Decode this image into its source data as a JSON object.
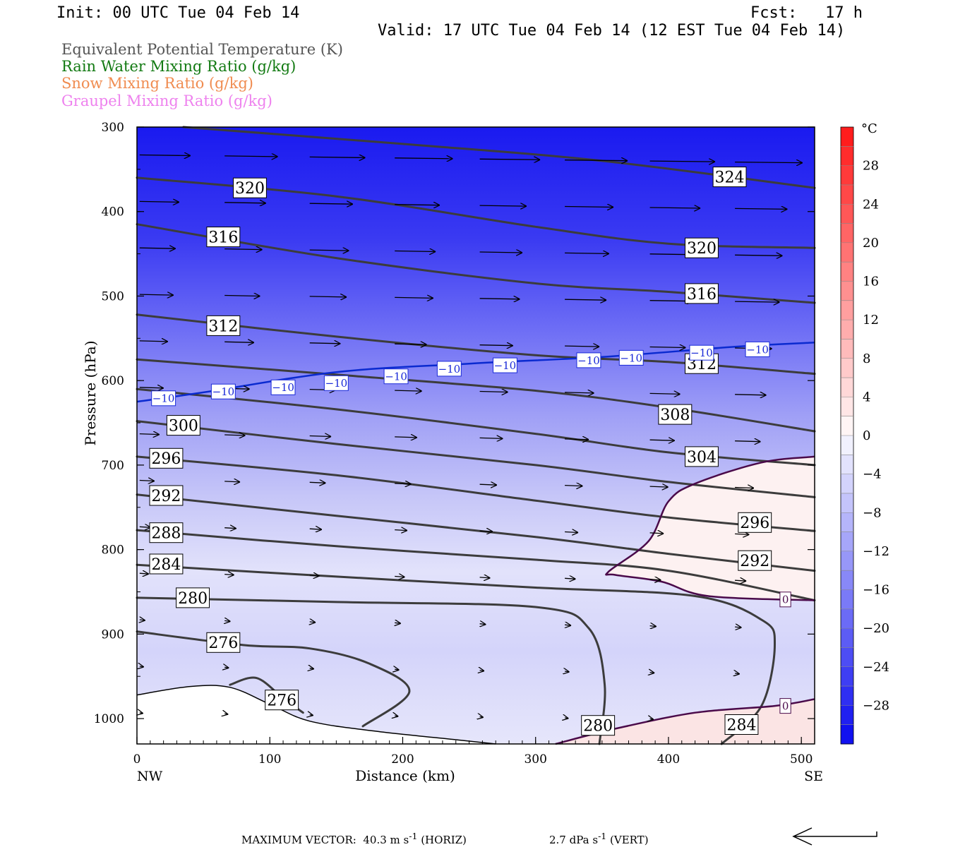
{
  "header": {
    "init": "Init: 00 UTC Tue 04 Feb 14",
    "fcst": "Fcst:   17 h",
    "valid": "Valid: 17 UTC Tue 04 Feb 14 (12 EST Tue 04 Feb 14)"
  },
  "legend": [
    {
      "text": "Equivalent Potential Temperature (K)",
      "color": "#555555"
    },
    {
      "text": "Rain Water Mixing Ratio (g/kg)",
      "color": "#127a12"
    },
    {
      "text": "Snow Mixing Ratio (g/kg)",
      "color": "#f08c50"
    },
    {
      "text": "Graupel Mixing Ratio (g/kg)",
      "color": "#ee82ee"
    }
  ],
  "footer": {
    "max_vector": "MAXIMUM VECTOR:  40.3 m s",
    "horiz": " (HORIZ)",
    "vert_val": "2.7 dPa s",
    "vert": " (VERT)",
    "exp": "-1"
  },
  "chart_data": {
    "type": "cross-section",
    "xlabel": "Distance (km)",
    "ylabel": "Pressure (hPa)",
    "xlim": [
      0,
      510
    ],
    "ylim": [
      300,
      1030
    ],
    "x_ticks": [
      0,
      100,
      200,
      300,
      400,
      500
    ],
    "y_ticks": [
      300,
      400,
      500,
      600,
      700,
      800,
      900,
      1000
    ],
    "x_end_labels": {
      "left": "NW",
      "right": "SE"
    },
    "colorbar": {
      "unit": "°C",
      "ticks": [
        28,
        24,
        20,
        16,
        12,
        8,
        4,
        0,
        -4,
        -8,
        -12,
        -16,
        -20,
        -24,
        -28
      ],
      "range": [
        -32,
        32
      ]
    },
    "theta_e_contours": [
      {
        "value": 324,
        "pts": [
          [
            35,
            300
          ],
          [
            200,
            320
          ],
          [
            350,
            340
          ],
          [
            510,
            372
          ]
        ],
        "labels": [
          {
            "x": 446,
            "p": 359,
            "text": "324"
          }
        ]
      },
      {
        "value": 320,
        "pts": [
          [
            0,
            360
          ],
          [
            150,
            382
          ],
          [
            300,
            418
          ],
          [
            400,
            438
          ],
          [
            510,
            443
          ]
        ],
        "labels": [
          {
            "x": 85,
            "p": 372,
            "text": "320"
          },
          {
            "x": 425,
            "p": 443,
            "text": "320"
          }
        ]
      },
      {
        "value": 316,
        "pts": [
          [
            0,
            415
          ],
          [
            150,
            455
          ],
          [
            300,
            485
          ],
          [
            400,
            495
          ],
          [
            510,
            508
          ]
        ],
        "labels": [
          {
            "x": 65,
            "p": 430,
            "text": "316"
          },
          {
            "x": 425,
            "p": 497,
            "text": "316"
          }
        ]
      },
      {
        "value": 312,
        "pts": [
          [
            0,
            522
          ],
          [
            150,
            548
          ],
          [
            300,
            570
          ],
          [
            400,
            578
          ],
          [
            510,
            592
          ]
        ],
        "labels": [
          {
            "x": 65,
            "p": 535,
            "text": "312"
          },
          {
            "x": 425,
            "p": 580,
            "text": "312"
          }
        ]
      },
      {
        "value": 308,
        "pts": [
          [
            0,
            575
          ],
          [
            150,
            593
          ],
          [
            300,
            612
          ],
          [
            400,
            632
          ],
          [
            510,
            660
          ]
        ],
        "labels": [
          {
            "x": 405,
            "p": 640,
            "text": "308"
          }
        ]
      },
      {
        "value": 304,
        "pts": [
          [
            0,
            610
          ],
          [
            150,
            634
          ],
          [
            300,
            663
          ],
          [
            400,
            685
          ],
          [
            510,
            700
          ]
        ],
        "labels": [
          {
            "x": 425,
            "p": 690,
            "text": "304"
          }
        ]
      },
      {
        "value": 300,
        "pts": [
          [
            0,
            648
          ],
          [
            150,
            675
          ],
          [
            300,
            700
          ],
          [
            400,
            720
          ],
          [
            510,
            738
          ]
        ],
        "labels": [
          {
            "x": 35,
            "p": 653,
            "text": "300"
          }
        ]
      },
      {
        "value": 296,
        "pts": [
          [
            0,
            690
          ],
          [
            150,
            712
          ],
          [
            300,
            742
          ],
          [
            400,
            762
          ],
          [
            510,
            778
          ]
        ],
        "labels": [
          {
            "x": 22,
            "p": 692,
            "text": "296"
          },
          {
            "x": 465,
            "p": 768,
            "text": "296"
          }
        ]
      },
      {
        "value": 292,
        "pts": [
          [
            0,
            735
          ],
          [
            150,
            760
          ],
          [
            300,
            785
          ],
          [
            400,
            805
          ],
          [
            510,
            825
          ]
        ],
        "labels": [
          {
            "x": 22,
            "p": 736,
            "text": "292"
          },
          {
            "x": 465,
            "p": 813,
            "text": "292"
          }
        ]
      },
      {
        "value": 288,
        "pts": [
          [
            0,
            777
          ],
          [
            150,
            796
          ],
          [
            300,
            812
          ],
          [
            400,
            825
          ],
          [
            510,
            860
          ]
        ],
        "labels": [
          {
            "x": 22,
            "p": 780,
            "text": "288"
          }
        ]
      },
      {
        "value": 284,
        "pts": [
          [
            0,
            818
          ],
          [
            150,
            832
          ],
          [
            300,
            845
          ],
          [
            420,
            855
          ],
          [
            470,
            883
          ],
          [
            480,
            912
          ],
          [
            470,
            985
          ],
          [
            440,
            1030
          ]
        ],
        "labels": [
          {
            "x": 22,
            "p": 817,
            "text": "284"
          },
          {
            "x": 455,
            "p": 1007,
            "text": "284"
          }
        ]
      },
      {
        "value": 280,
        "pts": [
          [
            0,
            857
          ],
          [
            150,
            862
          ],
          [
            300,
            868
          ],
          [
            340,
            893
          ],
          [
            352,
            960
          ],
          [
            348,
            1030
          ]
        ],
        "labels": [
          {
            "x": 42,
            "p": 857,
            "text": "280"
          },
          {
            "x": 347,
            "p": 1008,
            "text": "280"
          }
        ]
      },
      {
        "value": 276,
        "pts": [
          [
            0,
            897
          ],
          [
            80,
            913
          ],
          [
            130,
            917
          ],
          [
            175,
            935
          ],
          [
            205,
            968
          ],
          [
            170,
            1009
          ]
        ],
        "labels": [
          {
            "x": 65,
            "p": 910,
            "text": "276"
          }
        ]
      },
      {
        "value": 276,
        "pts": [
          [
            70,
            960
          ],
          [
            90,
            952
          ],
          [
            110,
            976
          ],
          [
            125,
            993
          ]
        ],
        "labels": [
          {
            "x": 109,
            "p": 978,
            "text": "276"
          }
        ]
      }
    ],
    "isotherm_minus10": {
      "value": -10,
      "pts": [
        [
          0,
          625
        ],
        [
          50,
          614
        ],
        [
          150,
          590
        ],
        [
          250,
          580
        ],
        [
          350,
          572
        ],
        [
          450,
          560
        ],
        [
          510,
          555
        ]
      ],
      "labels": [
        {
          "x": 20,
          "p": 621,
          "text": "−10"
        },
        {
          "x": 65,
          "p": 613,
          "text": "−10"
        },
        {
          "x": 110,
          "p": 608,
          "text": "−10"
        },
        {
          "x": 150,
          "p": 603,
          "text": "−10"
        },
        {
          "x": 195,
          "p": 595,
          "text": "−10"
        },
        {
          "x": 235,
          "p": 586,
          "text": "−10"
        },
        {
          "x": 277,
          "p": 582,
          "text": "−10"
        },
        {
          "x": 340,
          "p": 576,
          "text": "−10"
        },
        {
          "x": 372,
          "p": 573,
          "text": "−10"
        },
        {
          "x": 425,
          "p": 567,
          "text": "−10"
        },
        {
          "x": 467,
          "p": 563,
          "text": "−10"
        }
      ]
    },
    "isotherm_zero_upper": {
      "value": 0,
      "pts": [
        [
          510,
          690
        ],
        [
          470,
          697
        ],
        [
          420,
          722
        ],
        [
          400,
          743
        ],
        [
          385,
          790
        ],
        [
          355,
          826
        ],
        [
          360,
          830
        ],
        [
          395,
          838
        ],
        [
          430,
          855
        ],
        [
          510,
          860
        ]
      ],
      "labels": [
        {
          "x": 488,
          "p": 859,
          "text": "0"
        }
      ]
    },
    "isotherm_zero_lower": {
      "value": 0,
      "pts": [
        [
          315,
          1030
        ],
        [
          360,
          1012
        ],
        [
          420,
          993
        ],
        [
          480,
          985
        ],
        [
          510,
          977
        ]
      ],
      "labels": [
        {
          "x": 488,
          "p": 985,
          "text": "0"
        }
      ]
    },
    "terrain": [
      [
        0,
        972
      ],
      [
        40,
        962
      ],
      [
        70,
        963
      ],
      [
        100,
        983
      ],
      [
        130,
        1003
      ],
      [
        180,
        1015
      ],
      [
        240,
        1025
      ],
      [
        270,
        1030
      ]
    ],
    "wind_rows": [
      {
        "p": 333,
        "len": 68
      },
      {
        "p": 388,
        "len": 52
      },
      {
        "p": 443,
        "len": 47
      },
      {
        "p": 498,
        "len": 44
      },
      {
        "p": 553,
        "len": 36
      },
      {
        "p": 608,
        "len": 30
      },
      {
        "p": 663,
        "len": 24
      },
      {
        "p": 718,
        "len": 17
      },
      {
        "p": 773,
        "len": 12
      },
      {
        "p": 828,
        "len": 9
      },
      {
        "p": 883,
        "len": 4
      },
      {
        "p": 938,
        "len": 2
      },
      {
        "p": 993,
        "len": 1
      }
    ]
  }
}
